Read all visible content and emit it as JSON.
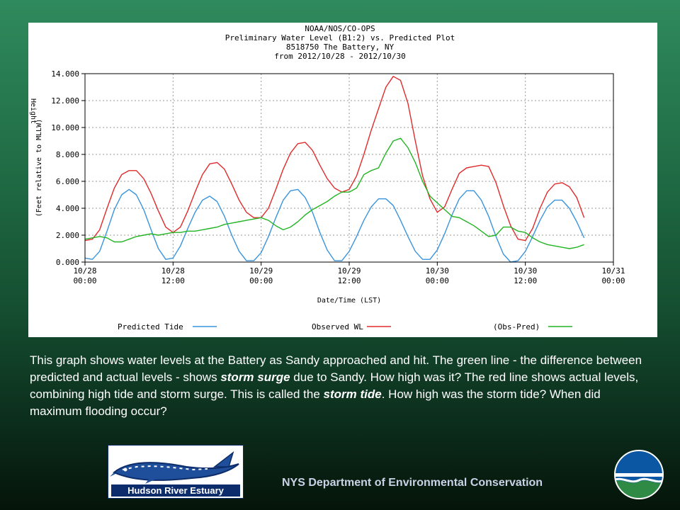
{
  "chart_data": {
    "type": "line",
    "title_lines": [
      "NOAA/NOS/CO-OPS",
      "Preliminary  Water Level (B1:2) vs. Predicted Plot",
      "8518750 The Battery, NY",
      "from 2012/10/28 - 2012/10/30"
    ],
    "xlabel": "Date/Time (LST)",
    "ylabel_lines": [
      "Height",
      "(Feet relative to MLLW)"
    ],
    "ylim": [
      0,
      14
    ],
    "xlim": [
      0,
      72
    ],
    "y_ticks": [
      "0.000",
      "2.000",
      "4.000",
      "6.000",
      "8.000",
      "10.000",
      "12.000",
      "14.000"
    ],
    "x_ticks": [
      {
        "date": "10/28",
        "time": "00:00"
      },
      {
        "date": "10/28",
        "time": "12:00"
      },
      {
        "date": "10/29",
        "time": "00:00"
      },
      {
        "date": "10/29",
        "time": "12:00"
      },
      {
        "date": "10/30",
        "time": "00:00"
      },
      {
        "date": "10/30",
        "time": "12:00"
      },
      {
        "date": "10/31",
        "time": "00:00"
      }
    ],
    "grid": true,
    "legend_position": "bottom",
    "series": [
      {
        "name": "Predicted Tide",
        "color": "#3a94dc",
        "points": [
          [
            0,
            0.3
          ],
          [
            1,
            0.2
          ],
          [
            2,
            0.8
          ],
          [
            3,
            2.3
          ],
          [
            4,
            3.9
          ],
          [
            5,
            5.0
          ],
          [
            6,
            5.4
          ],
          [
            7,
            5.0
          ],
          [
            8,
            3.9
          ],
          [
            9,
            2.4
          ],
          [
            10,
            1.0
          ],
          [
            11,
            0.2
          ],
          [
            12,
            0.3
          ],
          [
            13,
            1.2
          ],
          [
            14,
            2.5
          ],
          [
            15,
            3.7
          ],
          [
            16,
            4.6
          ],
          [
            17,
            4.9
          ],
          [
            18,
            4.5
          ],
          [
            19,
            3.4
          ],
          [
            20,
            2.0
          ],
          [
            21,
            0.8
          ],
          [
            22,
            0.1
          ],
          [
            23,
            0.1
          ],
          [
            24,
            0.7
          ],
          [
            25,
            1.9
          ],
          [
            26,
            3.3
          ],
          [
            27,
            4.6
          ],
          [
            28,
            5.3
          ],
          [
            29,
            5.4
          ],
          [
            30,
            4.8
          ],
          [
            31,
            3.7
          ],
          [
            32,
            2.2
          ],
          [
            33,
            0.9
          ],
          [
            34,
            0.1
          ],
          [
            35,
            0.1
          ],
          [
            36,
            0.8
          ],
          [
            37,
            1.9
          ],
          [
            38,
            3.1
          ],
          [
            39,
            4.1
          ],
          [
            40,
            4.7
          ],
          [
            41,
            4.7
          ],
          [
            42,
            4.2
          ],
          [
            43,
            3.1
          ],
          [
            44,
            1.9
          ],
          [
            45,
            0.8
          ],
          [
            46,
            0.2
          ],
          [
            47,
            0.2
          ],
          [
            48,
            0.9
          ],
          [
            49,
            2.1
          ],
          [
            50,
            3.5
          ],
          [
            51,
            4.7
          ],
          [
            52,
            5.3
          ],
          [
            53,
            5.3
          ],
          [
            54,
            4.6
          ],
          [
            55,
            3.4
          ],
          [
            56,
            1.9
          ],
          [
            57,
            0.6
          ],
          [
            58,
            0.0
          ],
          [
            59,
            0.1
          ],
          [
            60,
            0.8
          ],
          [
            61,
            1.9
          ],
          [
            62,
            3.1
          ],
          [
            63,
            4.1
          ],
          [
            64,
            4.6
          ],
          [
            65,
            4.6
          ],
          [
            66,
            4.0
          ],
          [
            67,
            3.0
          ],
          [
            68,
            1.8
          ]
        ]
      },
      {
        "name": "Observed WL",
        "color": "#e02b2b",
        "points": [
          [
            0,
            1.6
          ],
          [
            1,
            1.7
          ],
          [
            2,
            2.4
          ],
          [
            3,
            4.0
          ],
          [
            4,
            5.5
          ],
          [
            5,
            6.5
          ],
          [
            6,
            6.8
          ],
          [
            7,
            6.8
          ],
          [
            8,
            6.2
          ],
          [
            9,
            5.1
          ],
          [
            10,
            3.8
          ],
          [
            11,
            2.6
          ],
          [
            12,
            2.2
          ],
          [
            13,
            2.6
          ],
          [
            14,
            3.8
          ],
          [
            15,
            5.2
          ],
          [
            16,
            6.5
          ],
          [
            17,
            7.3
          ],
          [
            18,
            7.4
          ],
          [
            19,
            6.9
          ],
          [
            20,
            5.8
          ],
          [
            21,
            4.6
          ],
          [
            22,
            3.7
          ],
          [
            23,
            3.3
          ],
          [
            24,
            3.3
          ],
          [
            25,
            4.0
          ],
          [
            26,
            5.4
          ],
          [
            27,
            6.9
          ],
          [
            28,
            8.1
          ],
          [
            29,
            8.8
          ],
          [
            30,
            8.9
          ],
          [
            31,
            8.3
          ],
          [
            32,
            7.2
          ],
          [
            33,
            6.2
          ],
          [
            34,
            5.5
          ],
          [
            35,
            5.2
          ],
          [
            36,
            5.4
          ],
          [
            37,
            6.4
          ],
          [
            38,
            8.0
          ],
          [
            39,
            9.8
          ],
          [
            40,
            11.4
          ],
          [
            41,
            13.0
          ],
          [
            42,
            13.8
          ],
          [
            43,
            13.5
          ],
          [
            44,
            11.8
          ],
          [
            45,
            9.0
          ],
          [
            46,
            6.4
          ],
          [
            47,
            4.7
          ],
          [
            48,
            3.7
          ],
          [
            49,
            4.1
          ],
          [
            50,
            5.4
          ],
          [
            51,
            6.6
          ],
          [
            52,
            7.0
          ],
          [
            53,
            7.1
          ],
          [
            54,
            7.2
          ],
          [
            55,
            7.1
          ],
          [
            56,
            5.9
          ],
          [
            57,
            4.2
          ],
          [
            58,
            2.7
          ],
          [
            59,
            1.7
          ],
          [
            60,
            1.6
          ],
          [
            61,
            2.5
          ],
          [
            62,
            4.0
          ],
          [
            63,
            5.2
          ],
          [
            64,
            5.8
          ],
          [
            65,
            5.9
          ],
          [
            66,
            5.6
          ],
          [
            67,
            4.8
          ],
          [
            68,
            3.3
          ]
        ]
      },
      {
        "name": "(Obs-Pred)",
        "color": "#22b422",
        "points": [
          [
            0,
            1.7
          ],
          [
            1,
            1.8
          ],
          [
            2,
            1.9
          ],
          [
            3,
            1.8
          ],
          [
            4,
            1.5
          ],
          [
            5,
            1.5
          ],
          [
            6,
            1.7
          ],
          [
            7,
            1.9
          ],
          [
            8,
            2.0
          ],
          [
            9,
            2.1
          ],
          [
            10,
            2.0
          ],
          [
            11,
            2.1
          ],
          [
            12,
            2.2
          ],
          [
            13,
            2.2
          ],
          [
            14,
            2.3
          ],
          [
            15,
            2.3
          ],
          [
            16,
            2.4
          ],
          [
            17,
            2.5
          ],
          [
            18,
            2.6
          ],
          [
            19,
            2.8
          ],
          [
            20,
            2.9
          ],
          [
            21,
            3.0
          ],
          [
            22,
            3.1
          ],
          [
            23,
            3.2
          ],
          [
            24,
            3.3
          ],
          [
            25,
            3.1
          ],
          [
            26,
            2.7
          ],
          [
            27,
            2.4
          ],
          [
            28,
            2.6
          ],
          [
            29,
            3.0
          ],
          [
            30,
            3.5
          ],
          [
            31,
            3.9
          ],
          [
            32,
            4.2
          ],
          [
            33,
            4.5
          ],
          [
            34,
            4.9
          ],
          [
            35,
            5.2
          ],
          [
            36,
            5.2
          ],
          [
            37,
            5.5
          ],
          [
            38,
            6.5
          ],
          [
            39,
            6.8
          ],
          [
            40,
            7.0
          ],
          [
            41,
            8.1
          ],
          [
            42,
            9.0
          ],
          [
            43,
            9.2
          ],
          [
            44,
            8.5
          ],
          [
            45,
            7.4
          ],
          [
            46,
            6.0
          ],
          [
            47,
            4.9
          ],
          [
            48,
            4.4
          ],
          [
            49,
            3.9
          ],
          [
            50,
            3.4
          ],
          [
            51,
            3.3
          ],
          [
            52,
            3.0
          ],
          [
            53,
            2.7
          ],
          [
            54,
            2.3
          ],
          [
            55,
            1.9
          ],
          [
            56,
            2.0
          ],
          [
            57,
            2.6
          ],
          [
            58,
            2.6
          ],
          [
            59,
            2.3
          ],
          [
            60,
            2.2
          ],
          [
            61,
            1.8
          ],
          [
            62,
            1.5
          ],
          [
            63,
            1.3
          ],
          [
            64,
            1.2
          ],
          [
            65,
            1.1
          ],
          [
            66,
            1.0
          ],
          [
            67,
            1.1
          ],
          [
            68,
            1.3
          ]
        ]
      }
    ]
  },
  "caption": {
    "part1": "This graph shows water levels at the Battery as Sandy approached and hit. The green line - the difference between predicted and actual levels - shows ",
    "em1": "storm surge",
    "part2": " due to Sandy. How high was it? The red line shows actual levels, combining high tide and storm surge.  This is called  the ",
    "em2": "storm tide",
    "part3": ". How high was the storm tide? When did maximum flooding occur?"
  },
  "logo": {
    "text": "Hudson River Estuary"
  },
  "footer": {
    "text": "NYS Department of Environmental  Conservation"
  },
  "colors": {
    "background_top": "#2f8a5c",
    "background_bottom": "#051409",
    "logo_navy": "#0d2c6b",
    "dec_blue": "#0b57a4",
    "dec_green": "#2e8a45"
  }
}
